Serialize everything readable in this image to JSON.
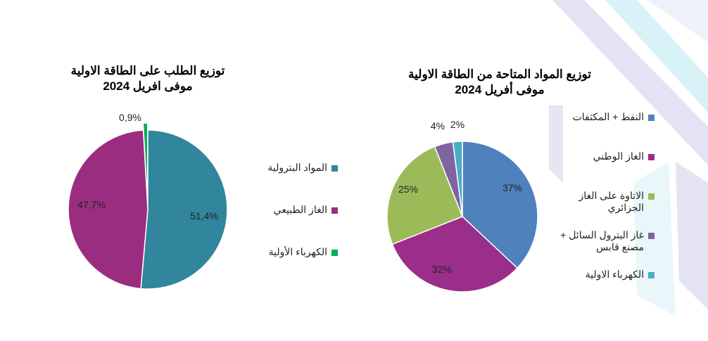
{
  "chart_data": [
    {
      "type": "pie",
      "title": "توزيع الطلب على الطاقة الاولية",
      "subtitle": "موفى افريل 2024",
      "categories": [
        "المواد البترولية",
        "الغاز الطبيعي",
        "الكهرباء الأولية"
      ],
      "values": [
        51.4,
        47.7,
        0.9
      ],
      "labels": [
        "51,4%",
        "47,7%",
        "0,9%"
      ],
      "colors": [
        "#31859c",
        "#9b2d80",
        "#00b050"
      ],
      "exploded": [
        false,
        false,
        true
      ],
      "legend_position": "right"
    },
    {
      "type": "pie",
      "title": "توزيع المواد المتاحة من الطاقة الاولية",
      "subtitle": "موفى أفريل 2024",
      "categories": [
        "النفط + المكثفات",
        "الغاز الوطني",
        "الاتاوة على الغاز الجزائري",
        "غاز البترول السائل + مصنع قابس",
        "الكهرباء الاولية"
      ],
      "values": [
        37,
        32,
        25,
        4,
        2
      ],
      "labels": [
        "37%",
        "32%",
        "25%",
        "4%",
        "2%"
      ],
      "colors": [
        "#4f81bd",
        "#9b2d8b",
        "#9bbb59",
        "#8064a2",
        "#4bacc6"
      ],
      "legend_position": "right"
    }
  ]
}
